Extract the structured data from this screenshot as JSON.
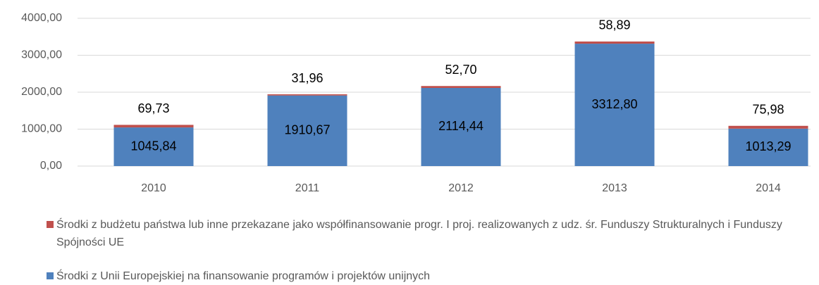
{
  "chart_data": {
    "type": "stacked_bar",
    "categories": [
      "2010",
      "2011",
      "2012",
      "2013",
      "2014"
    ],
    "series": [
      {
        "name": "Środki z Unii Europejskiej na finansowanie programów i projektów unijnych",
        "color": "#4f81bd",
        "values": [
          1045.84,
          1910.67,
          2114.44,
          3312.8,
          1013.29
        ],
        "value_labels": [
          "1045,84",
          "1910,67",
          "2114,44",
          "3312,80",
          "1013,29"
        ]
      },
      {
        "name": "Środki z budżetu państwa lub inne przekazane jako współfinansowanie progr. I proj. realizowanych z udz. śr. Funduszy Strukturalnych i Funduszy Spójności UE",
        "color": "#c0504d",
        "values": [
          69.73,
          31.96,
          52.7,
          58.89,
          75.98
        ],
        "value_labels": [
          "69,73",
          "31,96",
          "52,70",
          "58,89",
          "75,98"
        ]
      }
    ],
    "ylim": [
      0,
      4000
    ],
    "yticks": [
      {
        "value": 0,
        "label": "0,00"
      },
      {
        "value": 1000,
        "label": "1000,00"
      },
      {
        "value": 2000,
        "label": "2000,00"
      },
      {
        "value": 3000,
        "label": "3000,00"
      },
      {
        "value": 4000,
        "label": "4000,00"
      }
    ],
    "grid": true,
    "legend": "bottom"
  }
}
